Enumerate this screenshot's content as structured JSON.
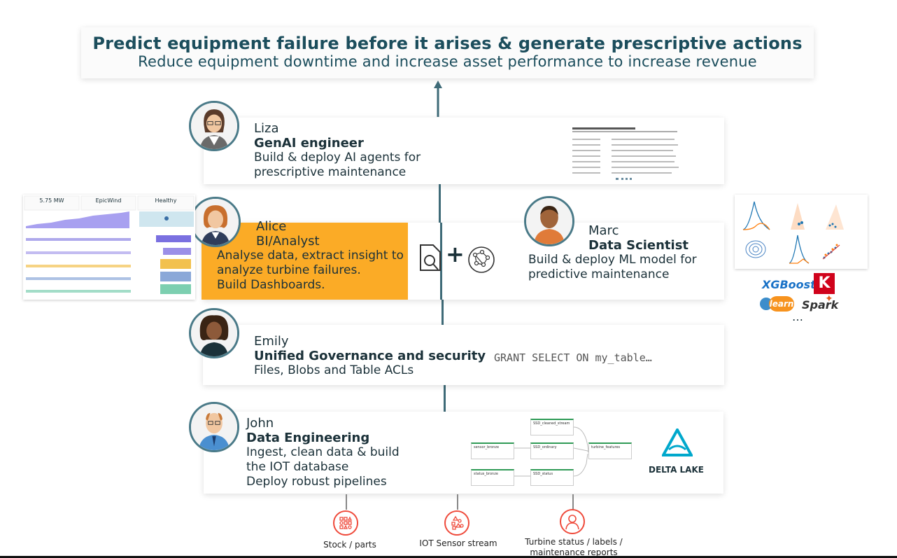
{
  "goal": {
    "title": "Predict equipment failure before it arises  & generate prescriptive actions",
    "subtitle": "Reduce equipment downtime and increase asset performance to increase revenue"
  },
  "personas": {
    "liza": {
      "name": "Liza",
      "role": "GenAI engineer",
      "desc1": "Build & deploy AI agents for",
      "desc2": "prescriptive maintenance"
    },
    "alice": {
      "name": "Alice",
      "role": "BI/Analyst",
      "desc1": "Analyse data, extract insight to",
      "desc2": "analyze turbine failures.",
      "desc3": "Build Dashboards."
    },
    "marc": {
      "name": "Marc",
      "role": "Data Scientist",
      "desc1": "Build & deploy ML model for",
      "desc2": "predictive maintenance"
    },
    "emily": {
      "name": "Emily",
      "role": "Unified Governance and security",
      "desc1": "Files, Blobs and Table ACLs",
      "code": "GRANT SELECT ON my_table…"
    },
    "john": {
      "name": "John",
      "role": "Data Engineering",
      "desc1": "Ingest, clean data & build",
      "desc2": "the IOT database",
      "desc3": "Deploy robust pipelines"
    }
  },
  "dashboard": {
    "kpi1": "5.75 MW",
    "kpi2": "EpicWind",
    "kpi3": "Healthy"
  },
  "ml_libraries": {
    "xgboost": "XGBoost",
    "keras": "K",
    "sklearn": "learn",
    "spark": "Spark",
    "more": "…"
  },
  "pipeline": {
    "nodes": [
      "SSD_cleaned_stream",
      "sensor_bronze",
      "SSD_ordinary",
      "turbine_features",
      "status_bronze",
      "SSD_status"
    ],
    "delta_label": "DELTA LAKE"
  },
  "sources": [
    {
      "label": "Stock / parts",
      "icon": "shapes-icon"
    },
    {
      "label": "IOT Sensor stream",
      "icon": "sensor-icon"
    },
    {
      "label": "Turbine status / labels / maintenance reports",
      "icon": "user-icon"
    }
  ],
  "colors": {
    "alice_bg": "#fbab26",
    "line": "#3f6b78",
    "source_red": "#ef4b3c",
    "xgboost": "#1a72c7",
    "keras": "#d0021b"
  }
}
